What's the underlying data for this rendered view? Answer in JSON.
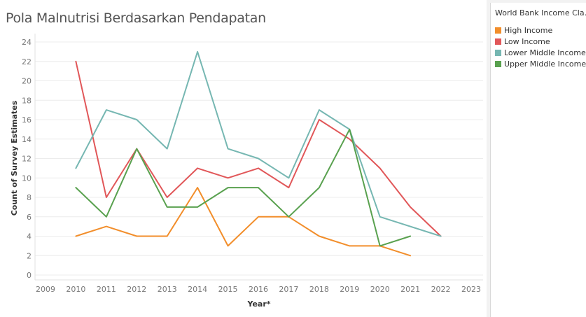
{
  "chart_data": {
    "type": "line",
    "title": "Pola Malnutrisi Berdasarkan Pendapatan",
    "xlabel": "Year*",
    "ylabel": "Count of Survey Estimates",
    "x_ticks": [
      2009,
      2010,
      2011,
      2012,
      2013,
      2014,
      2015,
      2016,
      2017,
      2018,
      2019,
      2020,
      2021,
      2022,
      2023
    ],
    "y_ticks": [
      0,
      2,
      4,
      6,
      8,
      10,
      12,
      14,
      16,
      18,
      20,
      22,
      24
    ],
    "xlim": [
      2009,
      2023
    ],
    "ylim": [
      0,
      24
    ],
    "grid": true,
    "legend": {
      "title": "World Bank Income Cla...",
      "position": "right"
    },
    "series": [
      {
        "name": "High Income",
        "color": "#f28e2b",
        "x": [
          2010,
          2011,
          2012,
          2013,
          2014,
          2015,
          2016,
          2017,
          2018,
          2019,
          2020,
          2021
        ],
        "values": [
          4,
          5,
          4,
          4,
          9,
          3,
          6,
          6,
          4,
          3,
          3,
          2
        ]
      },
      {
        "name": "Low Income",
        "color": "#e15759",
        "x": [
          2010,
          2011,
          2012,
          2013,
          2014,
          2015,
          2016,
          2017,
          2018,
          2019,
          2020,
          2021,
          2022
        ],
        "values": [
          22,
          8,
          13,
          8,
          11,
          10,
          11,
          9,
          16,
          14,
          11,
          7,
          4
        ]
      },
      {
        "name": "Lower Middle Income",
        "color": "#76b7b2",
        "x": [
          2010,
          2011,
          2012,
          2013,
          2014,
          2015,
          2016,
          2017,
          2018,
          2019,
          2020,
          2022
        ],
        "values": [
          11,
          17,
          16,
          13,
          23,
          13,
          12,
          10,
          17,
          15,
          6,
          4
        ]
      },
      {
        "name": "Upper Middle Income",
        "color": "#59a14f",
        "x": [
          2010,
          2011,
          2012,
          2013,
          2014,
          2015,
          2016,
          2017,
          2018,
          2019,
          2020,
          2021
        ],
        "values": [
          9,
          6,
          13,
          7,
          7,
          9,
          9,
          6,
          9,
          15,
          3,
          4
        ]
      }
    ]
  }
}
